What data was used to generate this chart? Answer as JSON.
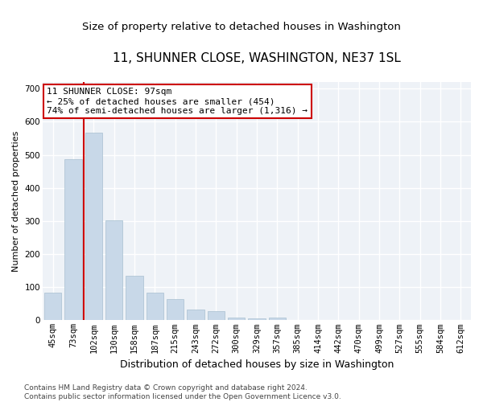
{
  "title": "11, SHUNNER CLOSE, WASHINGTON, NE37 1SL",
  "subtitle": "Size of property relative to detached houses in Washington",
  "xlabel": "Distribution of detached houses by size in Washington",
  "ylabel": "Number of detached properties",
  "categories": [
    "45sqm",
    "73sqm",
    "102sqm",
    "130sqm",
    "158sqm",
    "187sqm",
    "215sqm",
    "243sqm",
    "272sqm",
    "300sqm",
    "329sqm",
    "357sqm",
    "385sqm",
    "414sqm",
    "442sqm",
    "470sqm",
    "499sqm",
    "527sqm",
    "555sqm",
    "584sqm",
    "612sqm"
  ],
  "values": [
    83,
    487,
    568,
    302,
    135,
    84,
    65,
    33,
    28,
    8,
    5,
    8,
    0,
    0,
    0,
    0,
    0,
    0,
    0,
    0,
    0
  ],
  "bar_color": "#c8d8e8",
  "bar_edge_color": "#a8c0d0",
  "bar_width": 0.85,
  "red_line_x": 1.5,
  "red_line_color": "#cc0000",
  "annotation_text": "11 SHUNNER CLOSE: 97sqm\n← 25% of detached houses are smaller (454)\n74% of semi-detached houses are larger (1,316) →",
  "annotation_box_color": "#ffffff",
  "annotation_box_edge": "#cc0000",
  "ylim": [
    0,
    720
  ],
  "yticks": [
    0,
    100,
    200,
    300,
    400,
    500,
    600,
    700
  ],
  "background_color": "#eef2f7",
  "footer": "Contains HM Land Registry data © Crown copyright and database right 2024.\nContains public sector information licensed under the Open Government Licence v3.0.",
  "title_fontsize": 11,
  "subtitle_fontsize": 9.5,
  "xlabel_fontsize": 9,
  "ylabel_fontsize": 8,
  "tick_fontsize": 7.5,
  "annotation_fontsize": 8,
  "footer_fontsize": 6.5
}
